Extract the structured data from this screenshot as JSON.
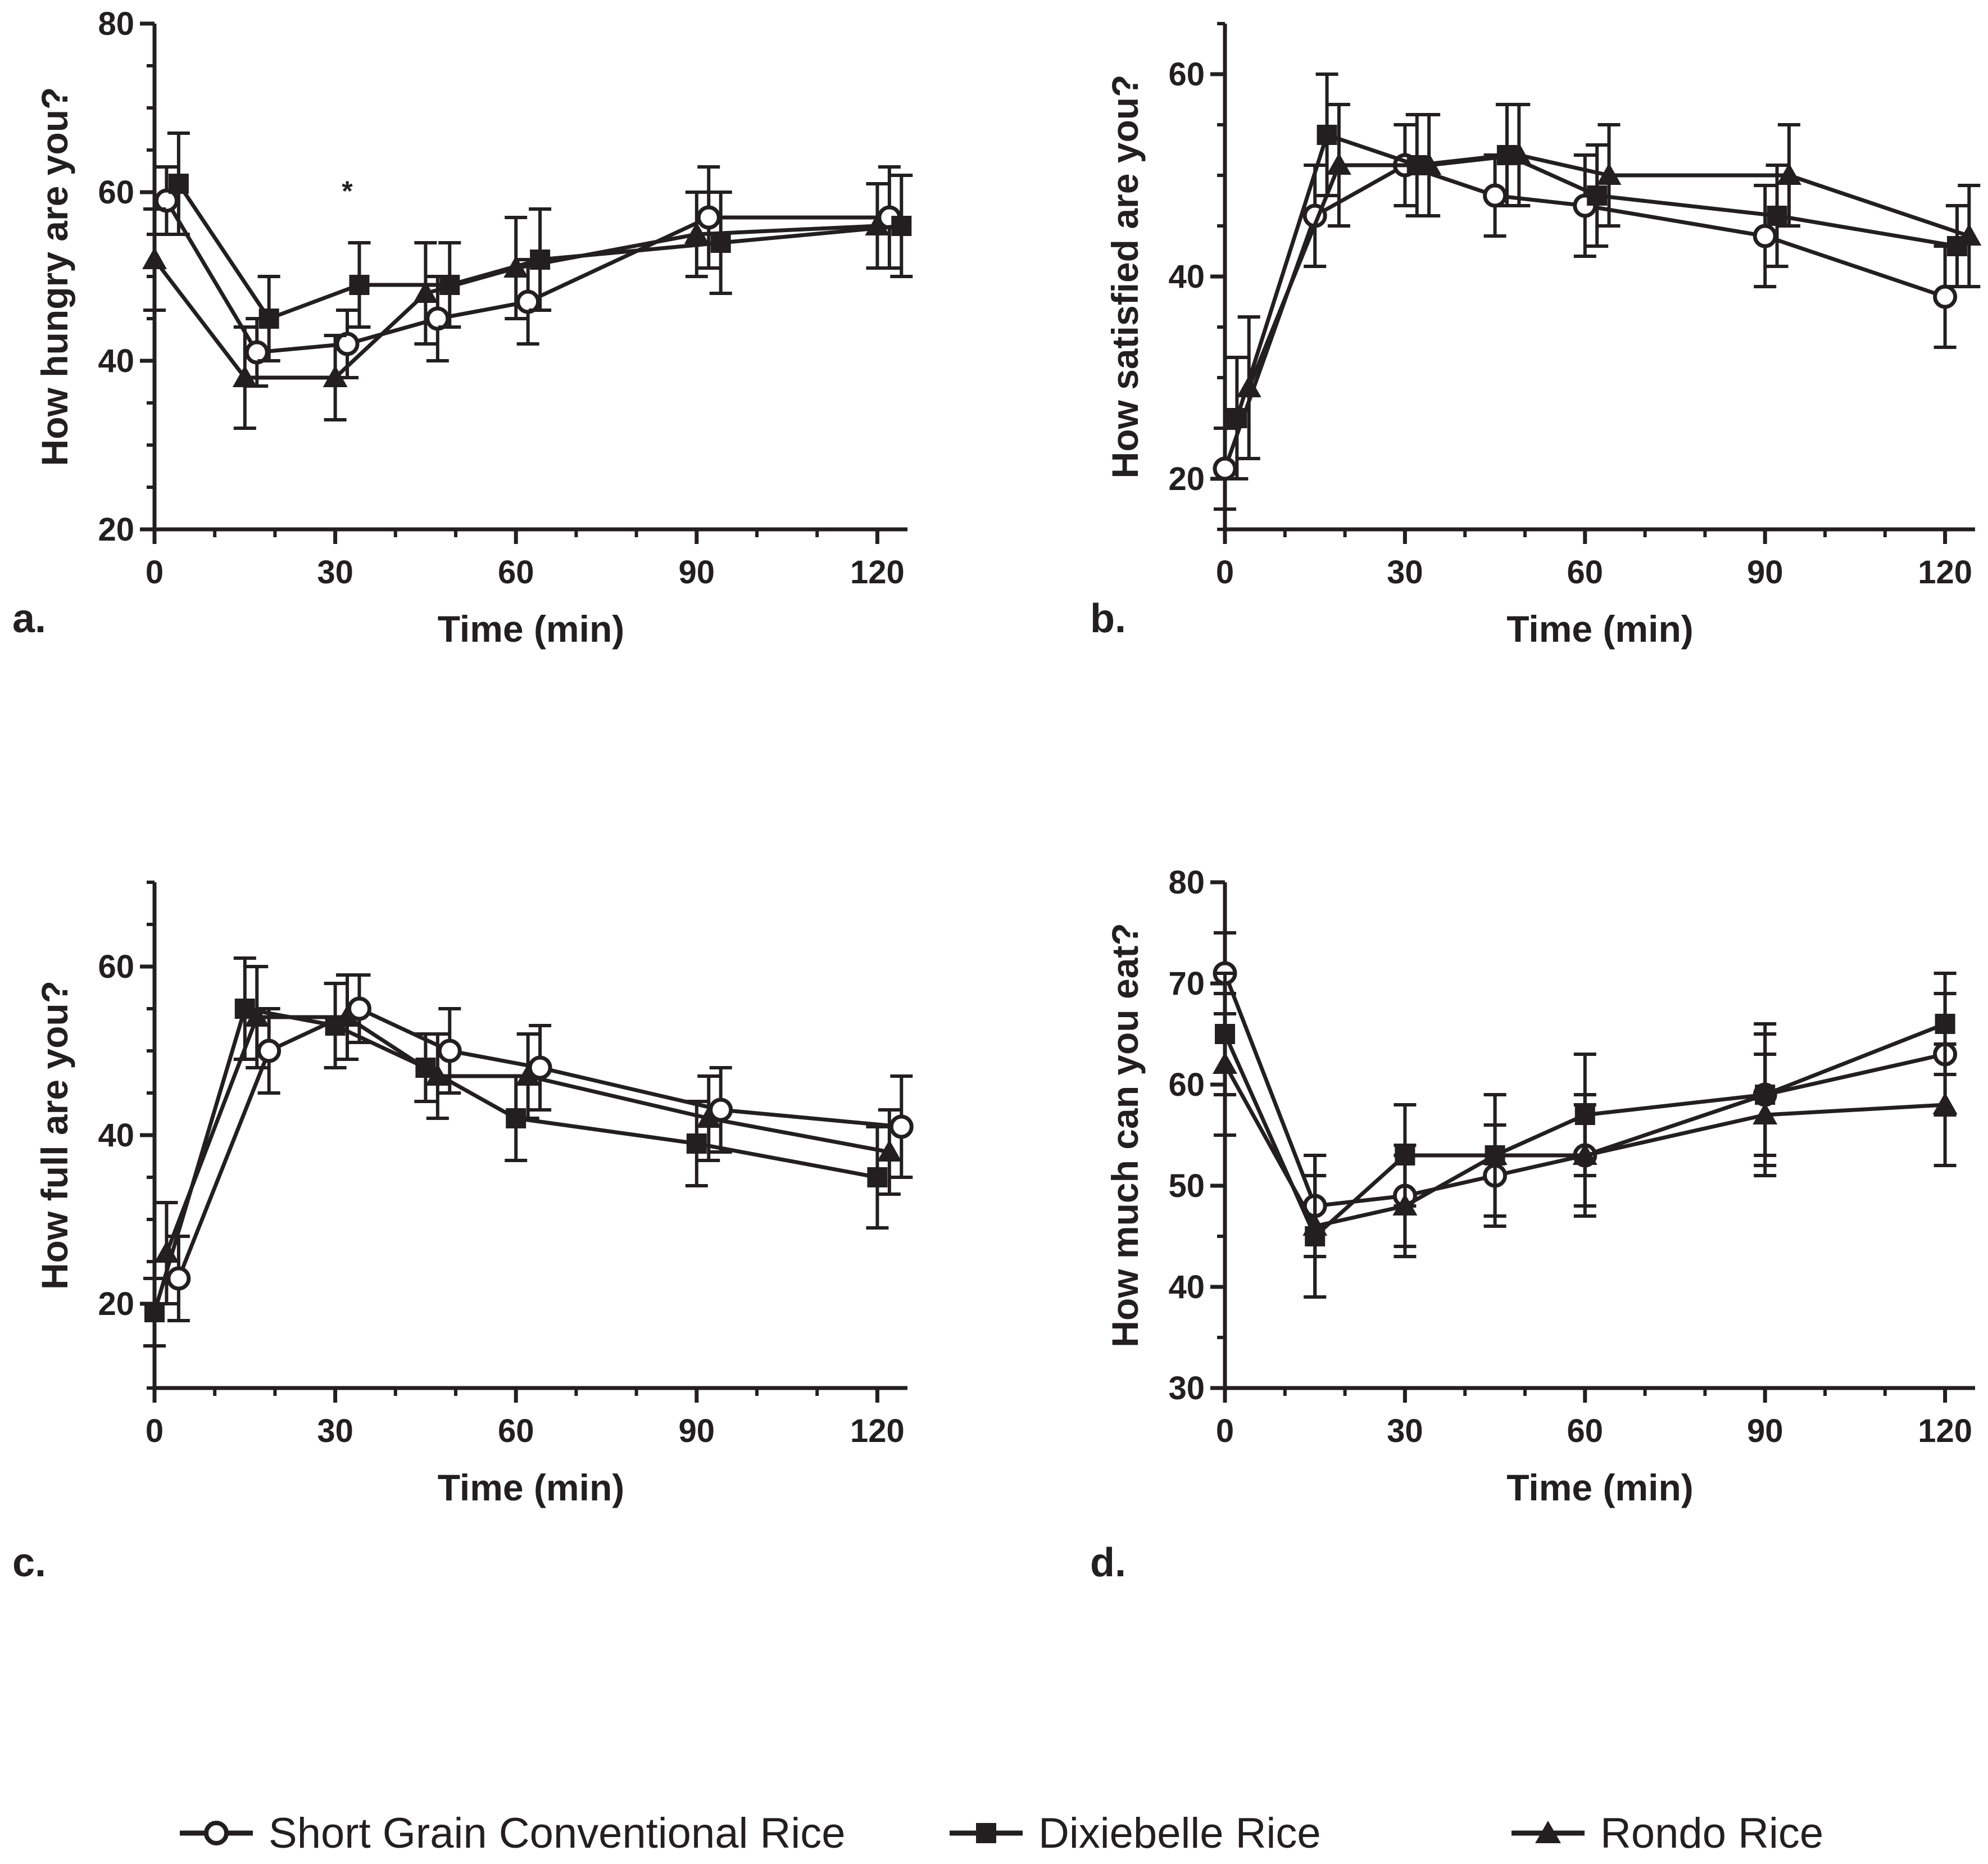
{
  "chart_data": [
    {
      "panel": "a.",
      "type": "line",
      "xlabel": "Time (min)",
      "ylabel": "How hungry are you?",
      "xlim": [
        0,
        125
      ],
      "ylim": [
        20,
        80
      ],
      "xticks": [
        0,
        30,
        60,
        90,
        120
      ],
      "yticks": [
        20,
        40,
        60,
        80
      ],
      "yminor_step": 5,
      "annotations": [
        {
          "text": "*",
          "x": 32,
          "y": 59
        }
      ],
      "series": [
        {
          "name": "Short Grain Conventional Rice",
          "marker": "open-circle",
          "x": [
            2,
            17,
            32,
            47,
            62,
            92,
            122
          ],
          "y": [
            59,
            41,
            42,
            45,
            47,
            57,
            57
          ],
          "err": [
            4,
            4,
            4,
            5,
            5,
            6,
            6
          ]
        },
        {
          "name": "Dixiebelle Rice",
          "marker": "filled-square",
          "x": [
            4,
            19,
            34,
            49,
            64,
            94,
            124
          ],
          "y": [
            61,
            45,
            49,
            49,
            52,
            54,
            56
          ],
          "err": [
            6,
            5,
            5,
            5,
            6,
            6,
            6
          ]
        },
        {
          "name": "Rondo Rice",
          "marker": "filled-triangle",
          "x": [
            0,
            15,
            30,
            45,
            60,
            90,
            120
          ],
          "y": [
            52,
            38,
            38,
            48,
            51,
            55,
            56
          ],
          "err": [
            6,
            6,
            5,
            6,
            6,
            5,
            5
          ]
        }
      ]
    },
    {
      "panel": "b.",
      "type": "line",
      "xlabel": "Time (min)",
      "ylabel": "How satisfied are you?",
      "xlim": [
        0,
        125
      ],
      "ylim": [
        15,
        65
      ],
      "xticks": [
        0,
        30,
        60,
        90,
        120
      ],
      "yticks": [
        20,
        40,
        60
      ],
      "yminor_step": 5,
      "annotations": [],
      "series": [
        {
          "name": "Short Grain Conventional Rice",
          "marker": "open-circle",
          "x": [
            0,
            15,
            30,
            45,
            60,
            90,
            120
          ],
          "y": [
            21,
            46,
            51,
            48,
            47,
            44,
            38
          ],
          "err": [
            4,
            5,
            4,
            4,
            5,
            5,
            5
          ]
        },
        {
          "name": "Dixiebelle Rice",
          "marker": "filled-square",
          "x": [
            2,
            17,
            32,
            47,
            62,
            92,
            122
          ],
          "y": [
            26,
            54,
            51,
            52,
            48,
            46,
            43
          ],
          "err": [
            6,
            6,
            5,
            5,
            5,
            5,
            4
          ]
        },
        {
          "name": "Rondo Rice",
          "marker": "filled-triangle",
          "x": [
            4,
            19,
            34,
            49,
            64,
            94,
            124
          ],
          "y": [
            29,
            51,
            51,
            52,
            50,
            50,
            44
          ],
          "err": [
            7,
            6,
            5,
            5,
            5,
            5,
            5
          ]
        }
      ]
    },
    {
      "panel": "c.",
      "type": "line",
      "xlabel": "Time (min)",
      "ylabel": "How full are you?",
      "xlim": [
        0,
        125
      ],
      "ylim": [
        10,
        70
      ],
      "xticks": [
        0,
        30,
        60,
        90,
        120
      ],
      "yticks": [
        20,
        40,
        60
      ],
      "yminor_step": 5,
      "annotations": [],
      "series": [
        {
          "name": "Short Grain Conventional Rice",
          "marker": "open-circle",
          "x": [
            4,
            19,
            34,
            49,
            64,
            94,
            124
          ],
          "y": [
            23,
            50,
            55,
            50,
            48,
            43,
            41
          ],
          "err": [
            5,
            5,
            4,
            5,
            5,
            5,
            6
          ]
        },
        {
          "name": "Dixiebelle Rice",
          "marker": "filled-square",
          "x": [
            0,
            15,
            30,
            45,
            60,
            90,
            120
          ],
          "y": [
            19,
            55,
            53,
            48,
            42,
            39,
            35
          ],
          "err": [
            4,
            6,
            5,
            4,
            5,
            5,
            6
          ]
        },
        {
          "name": "Rondo Rice",
          "marker": "filled-triangle",
          "x": [
            2,
            17,
            32,
            47,
            62,
            92,
            122
          ],
          "y": [
            26,
            54,
            54,
            47,
            47,
            42,
            38
          ],
          "err": [
            6,
            6,
            5,
            5,
            5,
            5,
            5
          ]
        }
      ]
    },
    {
      "panel": "d.",
      "type": "line",
      "xlabel": "Time (min)",
      "ylabel": "How much can you eat?",
      "xlim": [
        0,
        125
      ],
      "ylim": [
        30,
        80
      ],
      "xticks": [
        0,
        30,
        60,
        90,
        120
      ],
      "yticks": [
        30,
        40,
        50,
        60,
        70,
        80
      ],
      "yminor_step": 5,
      "annotations": [],
      "series": [
        {
          "name": "Short Grain Conventional Rice",
          "marker": "open-circle",
          "x": [
            0,
            15,
            30,
            45,
            60,
            90,
            120
          ],
          "y": [
            71,
            48,
            49,
            51,
            53,
            59,
            63
          ],
          "err": [
            4,
            5,
            5,
            5,
            5,
            6,
            6
          ]
        },
        {
          "name": "Dixiebelle Rice",
          "marker": "filled-square",
          "x": [
            0,
            15,
            30,
            45,
            60,
            90,
            120
          ],
          "y": [
            65,
            45,
            53,
            53,
            57,
            59,
            66
          ],
          "err": [
            6,
            6,
            5,
            6,
            6,
            7,
            5
          ]
        },
        {
          "name": "Rondo Rice",
          "marker": "filled-triangle",
          "x": [
            0,
            15,
            30,
            45,
            60,
            90,
            120
          ],
          "y": [
            62,
            46,
            48,
            53,
            53,
            57,
            58
          ],
          "err": [
            7,
            7,
            5,
            6,
            6,
            6,
            6
          ]
        }
      ]
    }
  ],
  "legend": {
    "placement": "bottom",
    "items": [
      {
        "name": "Short Grain Conventional Rice",
        "marker": "open-circle"
      },
      {
        "name": "Dixiebelle Rice",
        "marker": "filled-square"
      },
      {
        "name": "Rondo Rice",
        "marker": "filled-triangle"
      }
    ]
  },
  "colors": {
    "ink": "#231f20",
    "background": "#ffffff"
  }
}
